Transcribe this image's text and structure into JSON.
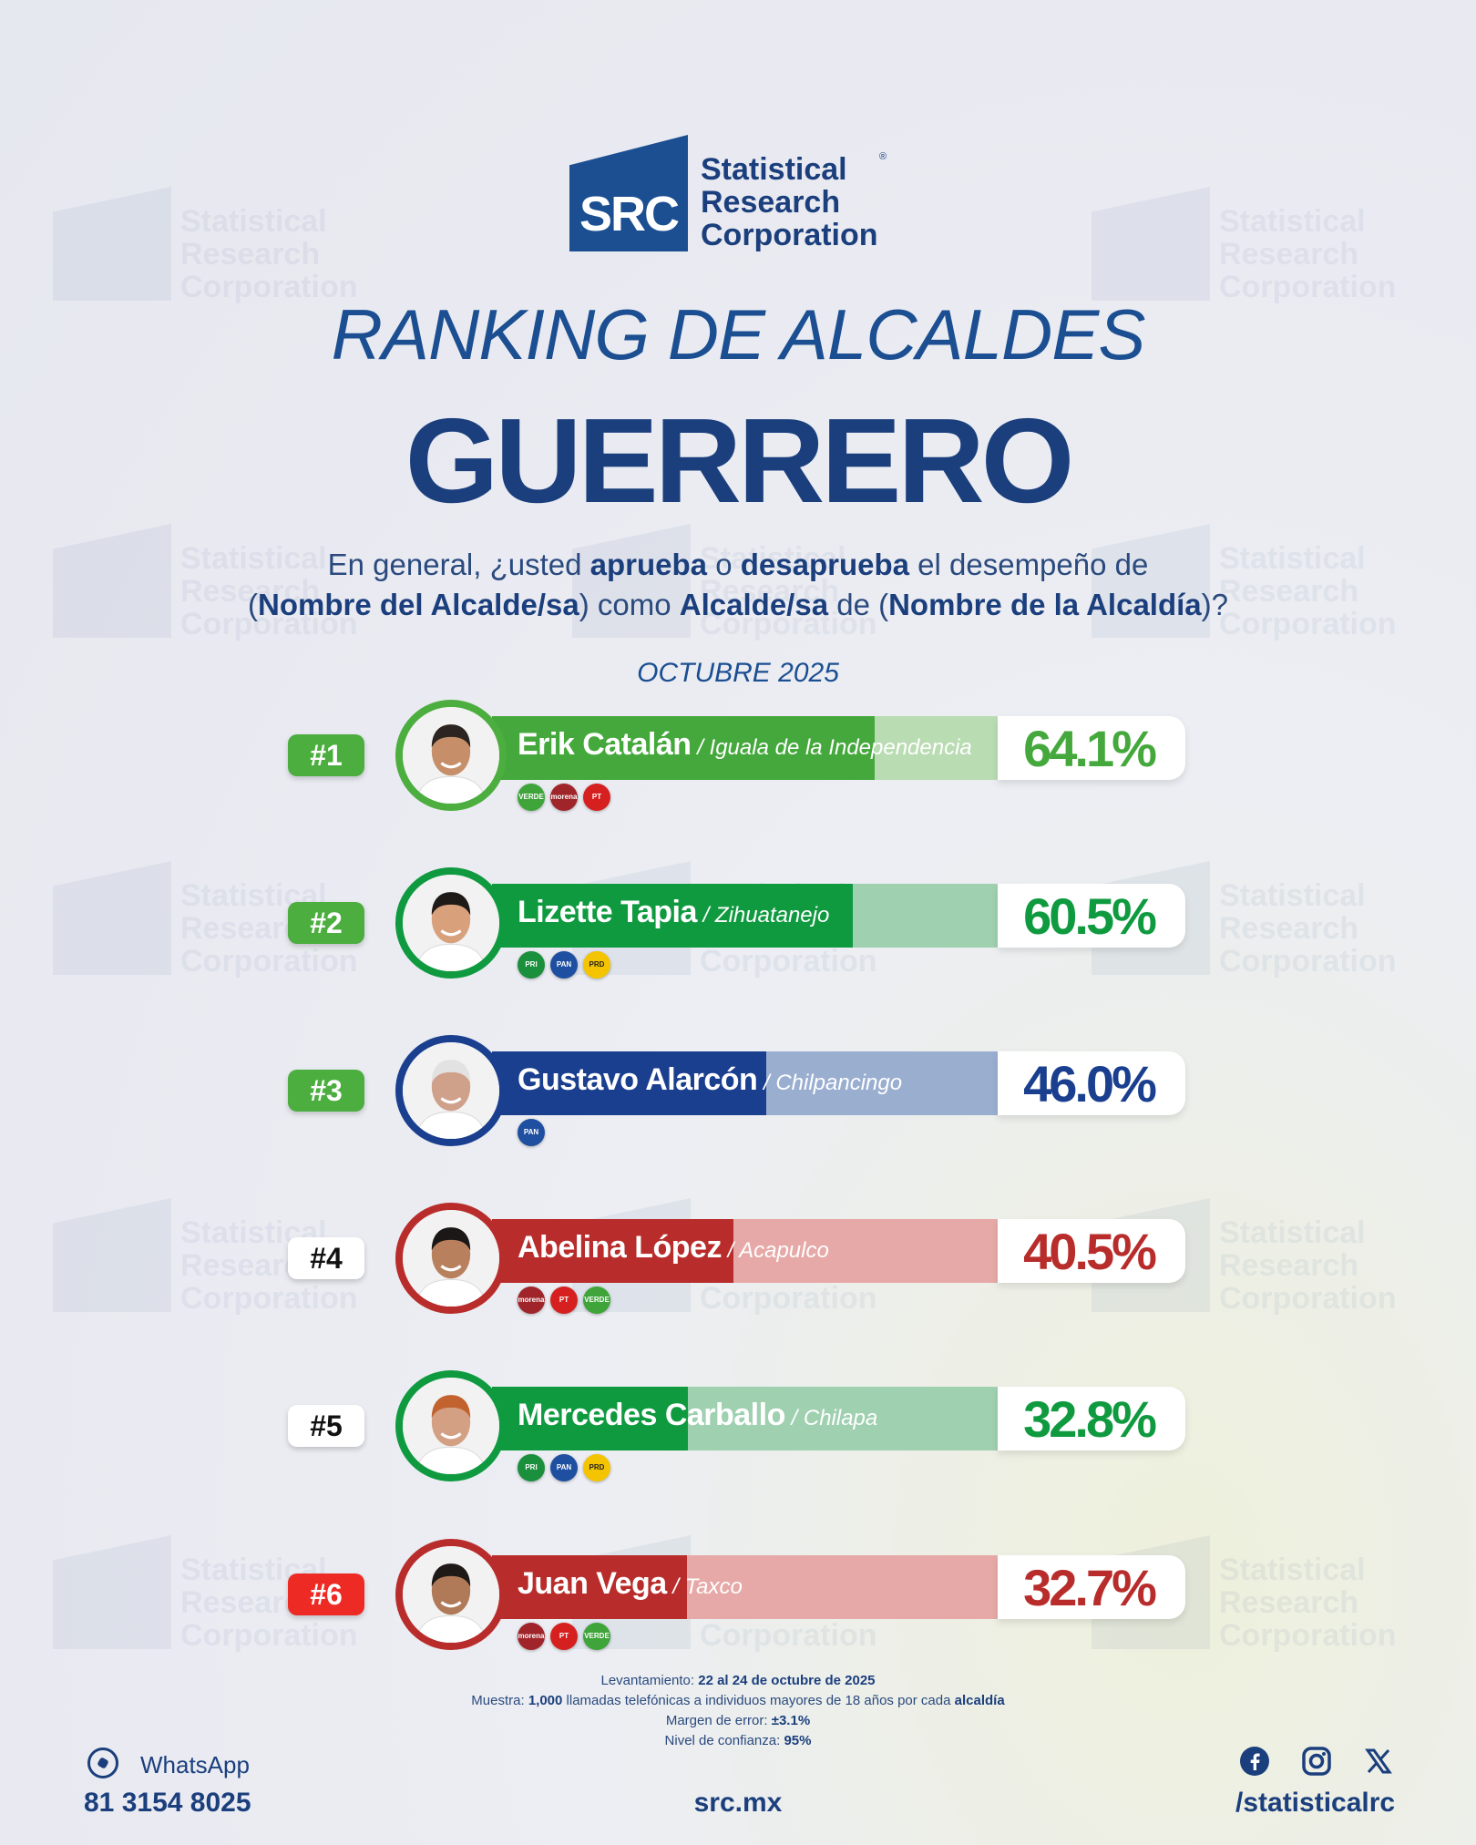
{
  "brand": {
    "abbr": "SRC",
    "name_lines": [
      "Statistical",
      "Research",
      "Corporation"
    ],
    "registered": "®",
    "color": "#1b4f92"
  },
  "subtitle": "RANKING DE ALCALDES",
  "title": "GUERRERO",
  "question": {
    "t1": "En general, ¿usted ",
    "b1": "aprueba",
    "t2": " o ",
    "b2": "desaprueba",
    "t3": " el desempeño de",
    "t4": "(",
    "b3": "Nombre del Alcalde/sa",
    "t5": ") como ",
    "b4": "Alcalde/sa",
    "t6": " de (",
    "b5": "Nombre de la Alcaldía",
    "t7": ")?"
  },
  "period": "OCTUBRE 2025",
  "chart_data": {
    "type": "bar",
    "title": "RANKING DE ALCALDES GUERRERO",
    "categories": [
      "Erik Catalán",
      "Lizette Tapia",
      "Gustavo Alarcón",
      "Abelina López",
      "Mercedes Carballo",
      "Juan Vega"
    ],
    "values": [
      64.1,
      60.5,
      46.0,
      40.5,
      32.8,
      32.7
    ],
    "unit": "%",
    "ylim": [
      0,
      100
    ]
  },
  "rows": [
    {
      "rank": "#1",
      "name": "Erik Catalán",
      "city": " / Iguala de la Independencia",
      "value": 64.1,
      "pct": "64.1%",
      "bar_color": "#45a83c",
      "bar_light": "#b9dcb3",
      "pct_color": "#45a83c",
      "ring_color": "#4cae3f",
      "rank_bg": "#4cae3f",
      "rank_color": "#ffffff",
      "parties": [
        {
          "label": "VERDE",
          "icon": "verde-logo",
          "bg": "#3fa53a"
        },
        {
          "label": "morena",
          "icon": "morena-logo",
          "bg": "#a0252b"
        },
        {
          "label": "PT",
          "icon": "pt-logo",
          "bg": "#d6201f"
        }
      ]
    },
    {
      "rank": "#2",
      "name": "Lizette Tapia",
      "city": " / Zihuatanejo",
      "value": 60.5,
      "pct": "60.5%",
      "bar_color": "#0f9a40",
      "bar_light": "#9fd0b0",
      "pct_color": "#0f9a40",
      "ring_color": "#0f9a40",
      "rank_bg": "#4cae3f",
      "rank_color": "#ffffff",
      "parties": [
        {
          "label": "PRI",
          "icon": "pri-logo",
          "bg": "#1a8f3c"
        },
        {
          "label": "PAN",
          "icon": "pan-logo",
          "bg": "#1f4fa1"
        },
        {
          "label": "PRD",
          "icon": "prd-logo",
          "bg": "#f5c400"
        }
      ]
    },
    {
      "rank": "#3",
      "name": "Gustavo Alarcón",
      "city": " / Chilpancingo",
      "value": 46.0,
      "pct": "46.0%",
      "bar_color": "#1a3f8f",
      "bar_light": "#9aaed0",
      "pct_color": "#1a3f8f",
      "ring_color": "#1a3f8f",
      "rank_bg": "#4cae3f",
      "rank_color": "#ffffff",
      "parties": [
        {
          "label": "PAN",
          "icon": "pan-logo",
          "bg": "#1f4fa1"
        }
      ]
    },
    {
      "rank": "#4",
      "name": "Abelina López",
      "city": " / Acapulco",
      "value": 40.5,
      "pct": "40.5%",
      "bar_color": "#b82d2b",
      "bar_light": "#e6a9a7",
      "pct_color": "#b82d2b",
      "ring_color": "#b82d2b",
      "rank_bg": "#ffffff",
      "rank_color": "#111111",
      "parties": [
        {
          "label": "morena",
          "icon": "morena-logo",
          "bg": "#a0252b"
        },
        {
          "label": "PT",
          "icon": "pt-logo",
          "bg": "#d6201f"
        },
        {
          "label": "VERDE",
          "icon": "verde-logo",
          "bg": "#3fa53a"
        }
      ]
    },
    {
      "rank": "#5",
      "name": "Mercedes Carballo",
      "city": " / Chilapa",
      "value": 32.8,
      "pct": "32.8%",
      "bar_color": "#0f9a40",
      "bar_light": "#9fd0b0",
      "pct_color": "#0f9a40",
      "ring_color": "#0f9a40",
      "rank_bg": "#ffffff",
      "rank_color": "#111111",
      "parties": [
        {
          "label": "PRI",
          "icon": "pri-logo",
          "bg": "#1a8f3c"
        },
        {
          "label": "PAN",
          "icon": "pan-logo",
          "bg": "#1f4fa1"
        },
        {
          "label": "PRD",
          "icon": "prd-logo",
          "bg": "#f5c400"
        }
      ]
    },
    {
      "rank": "#6",
      "name": "Juan Vega",
      "city": " / Taxco",
      "value": 32.7,
      "pct": "32.7%",
      "bar_color": "#b82d2b",
      "bar_light": "#e6a9a7",
      "pct_color": "#b82d2b",
      "ring_color": "#b82d2b",
      "rank_bg": "#ee2a24",
      "rank_color": "#ffffff",
      "parties": [
        {
          "label": "morena",
          "icon": "morena-logo",
          "bg": "#a0252b"
        },
        {
          "label": "PT",
          "icon": "pt-logo",
          "bg": "#d6201f"
        },
        {
          "label": "VERDE",
          "icon": "verde-logo",
          "bg": "#3fa53a"
        }
      ]
    }
  ],
  "notes": {
    "l1a": "Levantamiento: ",
    "l1b": "22 al 24 de octubre de 2025",
    "l2a": "Muestra: ",
    "l2b": "1,000",
    "l2c": " llamadas telefónicas a individuos mayores de 18 años por cada ",
    "l2d": "alcaldía",
    "l3a": "Margen de error: ",
    "l3b": "±3.1%",
    "l4a": "Nivel de confianza: ",
    "l4b": "95%"
  },
  "footer": {
    "whatsapp_label": "WhatsApp",
    "whatsapp_number": "81 3154 8025",
    "site": "src.mx",
    "handle": "/statisticalrc",
    "social_icons": [
      "facebook-icon",
      "instagram-icon",
      "x-icon"
    ]
  }
}
